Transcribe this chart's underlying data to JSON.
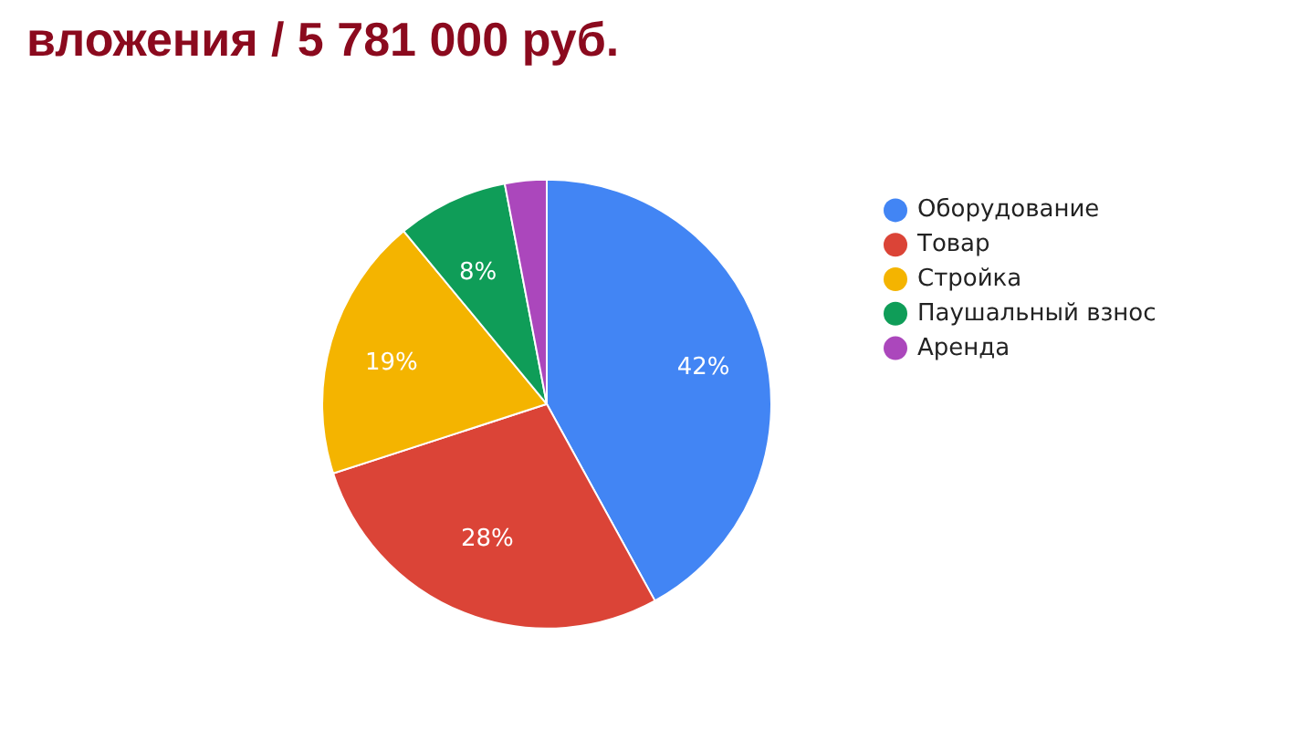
{
  "chart_data": {
    "type": "pie",
    "title": "вложения / 5 781 000 руб.",
    "categories": [
      "Оборудование",
      "Товар",
      "Стройка",
      "Паушальный взнос",
      "Аренда"
    ],
    "values": [
      42,
      28,
      19,
      8,
      3
    ],
    "colors": [
      "#4285f4",
      "#db4437",
      "#f4b400",
      "#0f9d58",
      "#ab47bc"
    ],
    "value_labels": [
      "42%",
      "28%",
      "19%",
      "8%",
      null
    ],
    "legend": "right"
  }
}
